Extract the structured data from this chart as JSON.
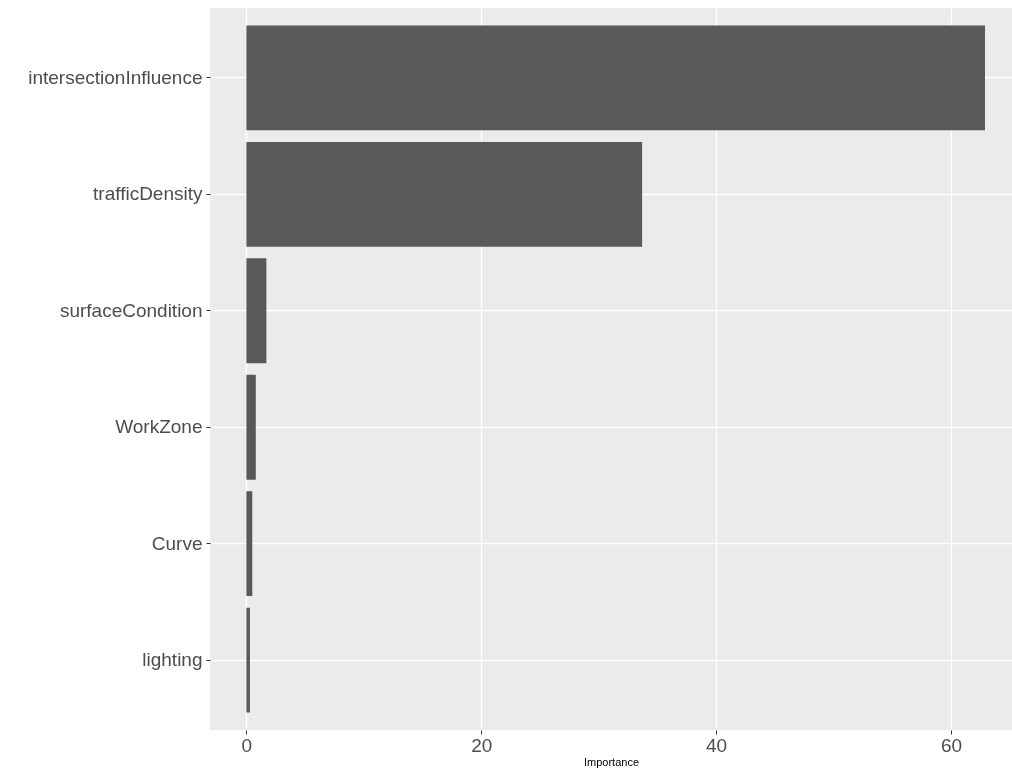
{
  "chart_data": {
    "type": "bar",
    "orientation": "horizontal",
    "xlabel": "Importance",
    "categories": [
      "intersectionInfluence",
      "trafficDensity",
      "surfaceCondition",
      "WorkZone",
      "Curve",
      "lighting"
    ],
    "values": [
      62.9,
      33.7,
      1.7,
      0.8,
      0.5,
      0.3
    ],
    "color": "#595959",
    "xlim": [
      -3.1,
      65.2
    ],
    "xticks": [
      0,
      20,
      40,
      60
    ],
    "grid": true
  }
}
